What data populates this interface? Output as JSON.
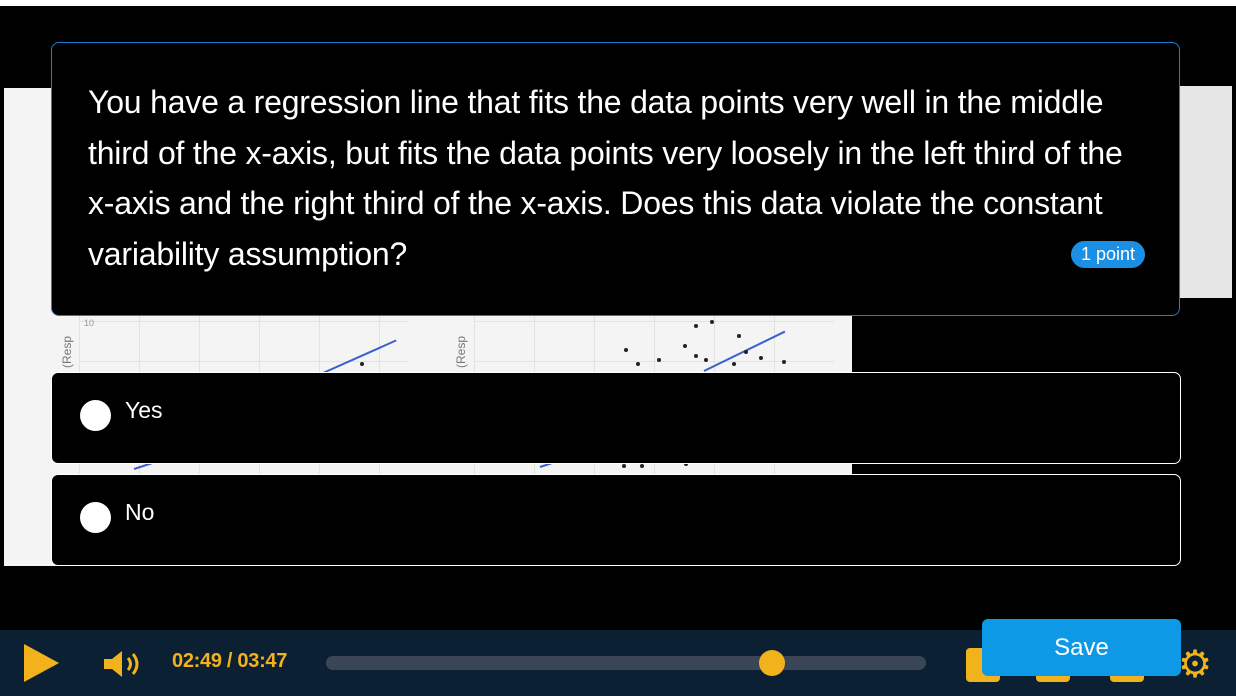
{
  "question": {
    "text": "You have a regression line that fits the data points very well in the middle third of the x-axis, but fits the data points very loosely in the left third of the x-axis and the right third of the x-axis. Does this data violate the constant variability assumption?",
    "points": "1 point"
  },
  "options": [
    {
      "label": "Yes"
    },
    {
      "label": "No"
    }
  ],
  "background_slide": {
    "axis_label_left": "e (Resp",
    "axis_label_middle": "e (Resp",
    "tick_label": "10"
  },
  "player": {
    "time": "02:49 / 03:47",
    "progress_fraction": 0.744,
    "icons": [
      "play-icon",
      "volume-icon",
      "captions-icon",
      "transcript-icon",
      "fullscreen-icon",
      "gear-icon"
    ],
    "accent_color": "#f2b21b"
  },
  "actions": {
    "save_label": "Save"
  }
}
